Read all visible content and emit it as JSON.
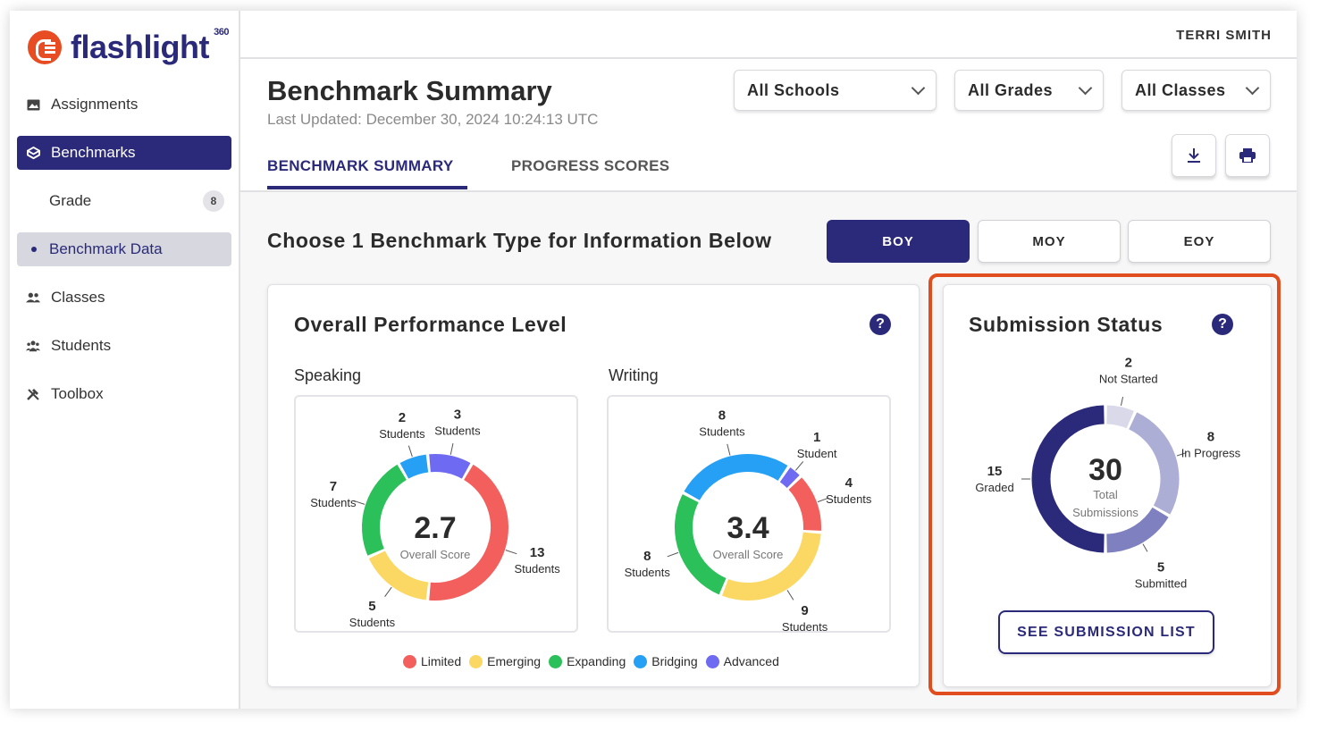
{
  "app": {
    "logo_text": "flashlight",
    "logo_sup": "360"
  },
  "user": {
    "name": "TERRI SMITH"
  },
  "sidebar": {
    "items": [
      {
        "label": "Assignments",
        "icon": "image-icon"
      },
      {
        "label": "Benchmarks",
        "icon": "cube-icon"
      },
      {
        "label": "Grade",
        "badge": "8"
      },
      {
        "label": "Benchmark Data"
      },
      {
        "label": "Classes",
        "icon": "people-icon"
      },
      {
        "label": "Students",
        "icon": "group-icon"
      },
      {
        "label": "Toolbox",
        "icon": "tools-icon"
      }
    ]
  },
  "header": {
    "title": "Benchmark Summary",
    "updated": "Last Updated: December 30, 2024 10:24:13 UTC",
    "filters": {
      "schools": "All Schools",
      "grades": "All Grades",
      "classes": "All Classes"
    },
    "tabs": [
      "BENCHMARK SUMMARY",
      "PROGRESS SCORES"
    ]
  },
  "main": {
    "choose_label": "Choose 1 Benchmark Type for Information Below",
    "benchmark_types": [
      "BOY",
      "MOY",
      "EOY"
    ],
    "selected_type": "BOY"
  },
  "performance": {
    "title": "Overall Performance Level",
    "score_caption": "Overall Score",
    "levels": [
      {
        "name": "Limited",
        "color": "#f25f5c"
      },
      {
        "name": "Emerging",
        "color": "#fbd863"
      },
      {
        "name": "Expanding",
        "color": "#2cc05a"
      },
      {
        "name": "Bridging",
        "color": "#26a0f4"
      },
      {
        "name": "Advanced",
        "color": "#6f6af2"
      }
    ]
  },
  "submission": {
    "title": "Submission Status",
    "total": "30",
    "total_line1": "Total",
    "total_line2": "Submissions",
    "button": "SEE SUBMISSION LIST"
  },
  "chart_data": [
    {
      "type": "pie",
      "title": "Speaking",
      "center_value": "2.7",
      "categories": [
        "Limited",
        "Emerging",
        "Expanding",
        "Bridging",
        "Advanced"
      ],
      "values": [
        13,
        5,
        7,
        2,
        3
      ],
      "labels": [
        "Students",
        "Students",
        "Students",
        "Students",
        "Students"
      ]
    },
    {
      "type": "pie",
      "title": "Writing",
      "center_value": "3.4",
      "categories": [
        "Limited",
        "Emerging",
        "Expanding",
        "Bridging",
        "Advanced"
      ],
      "values": [
        4,
        9,
        8,
        8,
        1
      ],
      "labels": [
        "Students",
        "Students",
        "Students",
        "Students",
        "Student"
      ]
    },
    {
      "type": "pie",
      "title": "Submission Status",
      "categories": [
        "Not Started",
        "In Progress",
        "Submitted",
        "Graded"
      ],
      "values": [
        2,
        8,
        5,
        15
      ],
      "colors": [
        "#d9d9ea",
        "#acaed5",
        "#7f80c0",
        "#2b2a7a"
      ]
    }
  ]
}
